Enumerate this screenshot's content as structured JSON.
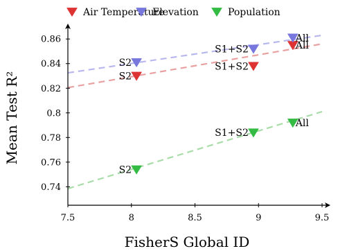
{
  "chart_data": {
    "type": "scatter",
    "title": "",
    "xlabel": "FisherS Global ID",
    "ylabel": "Mean Test R²",
    "xlim": [
      7.5,
      9.5
    ],
    "ylim": [
      0.725,
      0.868
    ],
    "x_ticks": [
      "7.5",
      "8",
      "8.5",
      "9",
      "9.5"
    ],
    "x_tick_values": [
      7.5,
      8,
      8.5,
      9,
      9.5
    ],
    "y_ticks": [
      "0.74",
      "0.76",
      "0.78",
      "0.8",
      "0.82",
      "0.84",
      "0.86"
    ],
    "y_tick_values": [
      0.74,
      0.76,
      0.78,
      0.8,
      0.82,
      0.84,
      0.86
    ],
    "grid": false,
    "legend_position": "top",
    "series": [
      {
        "name": "Air Temperature",
        "color": "#dd3333",
        "trend_color": "#e8a0a0",
        "marker": "triangle-down",
        "trend": [
          [
            7.5,
            0.8205
          ],
          [
            9.5,
            0.856
          ]
        ],
        "points": [
          {
            "x": 8.04,
            "y": 0.83,
            "label": "S2",
            "label_side": "left"
          },
          {
            "x": 8.96,
            "y": 0.838,
            "label": "S1+S2",
            "label_side": "left"
          },
          {
            "x": 9.27,
            "y": 0.855,
            "label": "All",
            "label_side": "right"
          }
        ]
      },
      {
        "name": "Elevation",
        "color": "#7777dd",
        "trend_color": "#b8b8ee",
        "marker": "triangle-down",
        "trend": [
          [
            7.5,
            0.8325
          ],
          [
            9.5,
            0.863
          ]
        ],
        "points": [
          {
            "x": 8.04,
            "y": 0.841,
            "label": "S2",
            "label_side": "left"
          },
          {
            "x": 8.96,
            "y": 0.852,
            "label": "S1+S2",
            "label_side": "left"
          },
          {
            "x": 9.27,
            "y": 0.861,
            "label": "All",
            "label_side": "right"
          }
        ]
      },
      {
        "name": "Population",
        "color": "#33bb44",
        "trend_color": "#a8dca8",
        "marker": "triangle-down",
        "trend": [
          [
            7.5,
            0.7385
          ],
          [
            9.5,
            0.801
          ]
        ],
        "points": [
          {
            "x": 8.04,
            "y": 0.754,
            "label": "S2",
            "label_side": "left"
          },
          {
            "x": 8.96,
            "y": 0.784,
            "label": "S1+S2",
            "label_side": "left"
          },
          {
            "x": 9.27,
            "y": 0.792,
            "label": "All",
            "label_side": "right"
          }
        ]
      }
    ]
  }
}
